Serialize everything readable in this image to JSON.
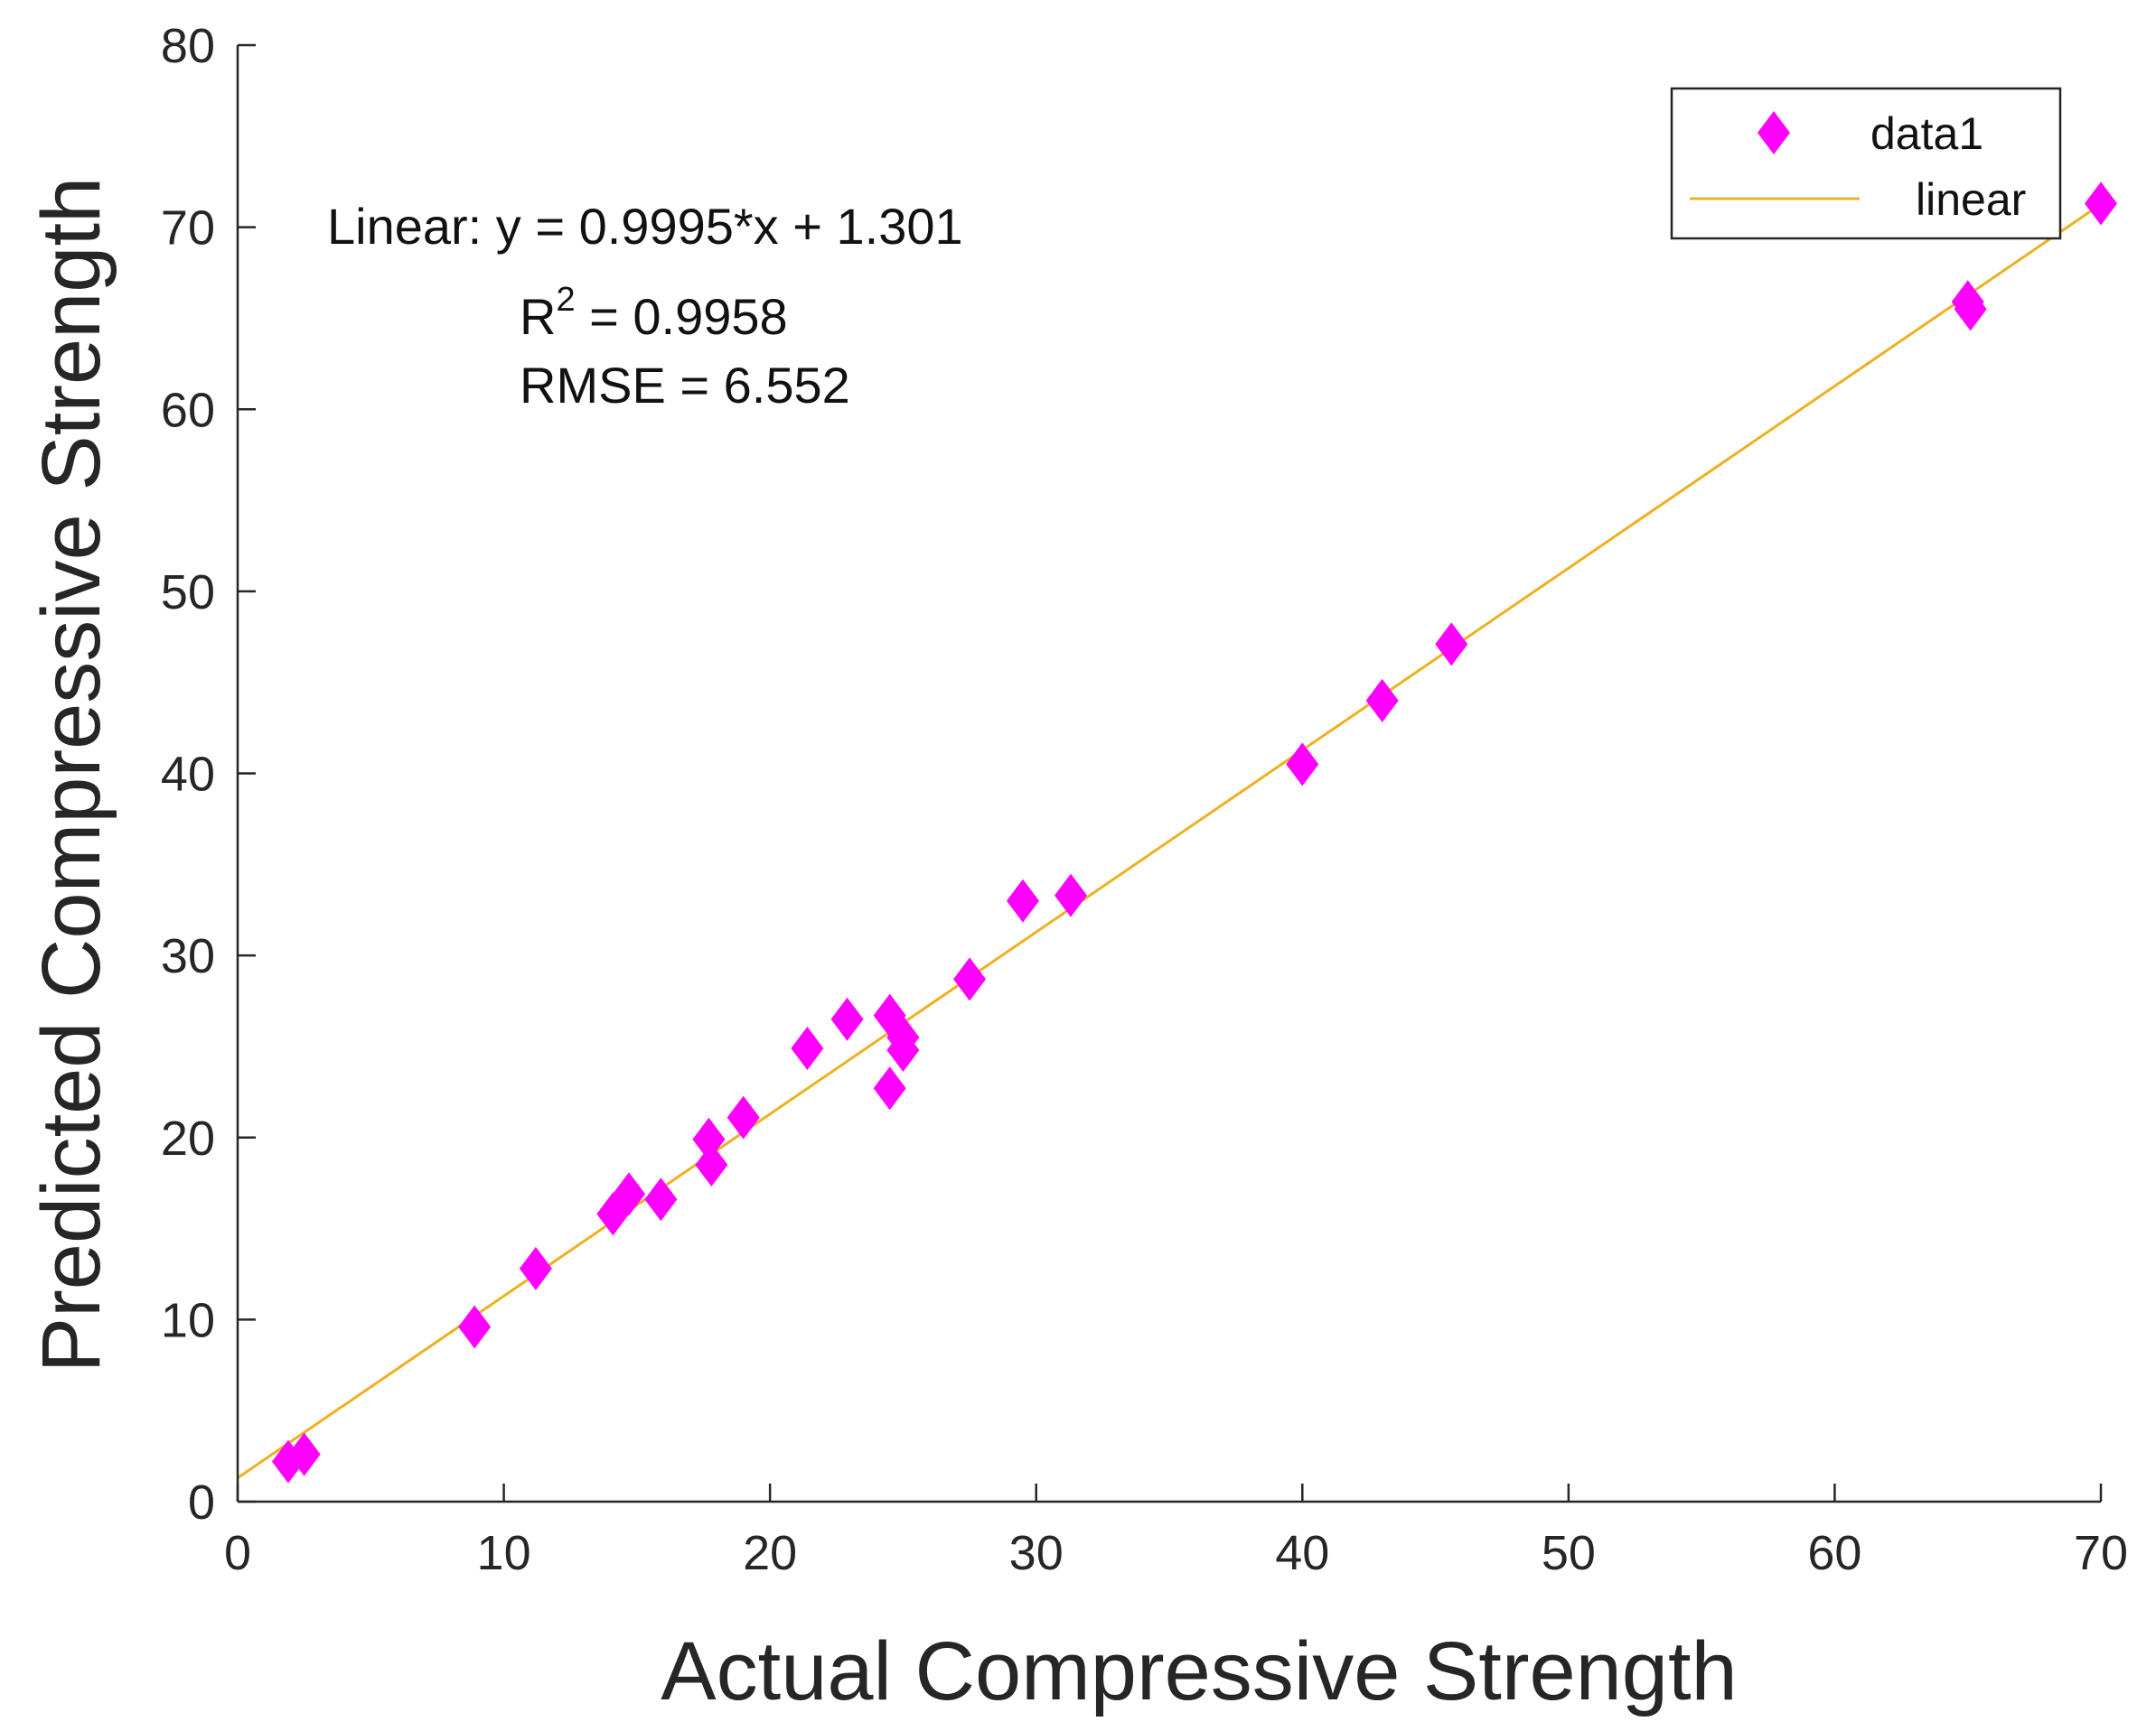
{
  "chart_data": {
    "type": "scatter",
    "xlabel": "Actual Compressive Strength",
    "ylabel": "Predicted Compressive Strength",
    "xlim": [
      0,
      70
    ],
    "ylim": [
      0,
      80
    ],
    "xticks": [
      0,
      10,
      20,
      30,
      40,
      50,
      60,
      70
    ],
    "yticks": [
      0,
      10,
      20,
      30,
      40,
      50,
      60,
      70,
      80
    ],
    "grid": false,
    "legend_position": "top-right",
    "series": [
      {
        "name": "data1",
        "type": "scatter",
        "marker": "diamond",
        "color": "#ff00ff",
        "points": [
          [
            1.9,
            2.2
          ],
          [
            2.5,
            2.6
          ],
          [
            8.9,
            9.6
          ],
          [
            11.2,
            12.8
          ],
          [
            14.1,
            15.8
          ],
          [
            14.7,
            16.9
          ],
          [
            15.9,
            16.6
          ],
          [
            17.7,
            19.9
          ],
          [
            17.8,
            18.5
          ],
          [
            19.0,
            21.1
          ],
          [
            21.4,
            24.9
          ],
          [
            22.9,
            26.5
          ],
          [
            24.5,
            26.7
          ],
          [
            24.5,
            22.7
          ],
          [
            25.0,
            25.5
          ],
          [
            25.0,
            24.8
          ],
          [
            27.5,
            28.7
          ],
          [
            29.5,
            33.0
          ],
          [
            31.3,
            33.3
          ],
          [
            40.0,
            40.5
          ],
          [
            43.0,
            44.0
          ],
          [
            45.6,
            47.1
          ],
          [
            65.0,
            65.9
          ],
          [
            65.1,
            65.5
          ],
          [
            70.0,
            71.3
          ]
        ]
      },
      {
        "name": "linear",
        "type": "line",
        "color": "#edb120",
        "slope": 0.9995,
        "intercept": 1.301
      }
    ],
    "annotations": {
      "equation": "Linear:  y = 0.9995*x + 1.301",
      "r2_prefix": "R",
      "r2_sup": "2",
      "r2_rest": " = 0.9958",
      "rmse": "RMSE = 6.552"
    }
  }
}
